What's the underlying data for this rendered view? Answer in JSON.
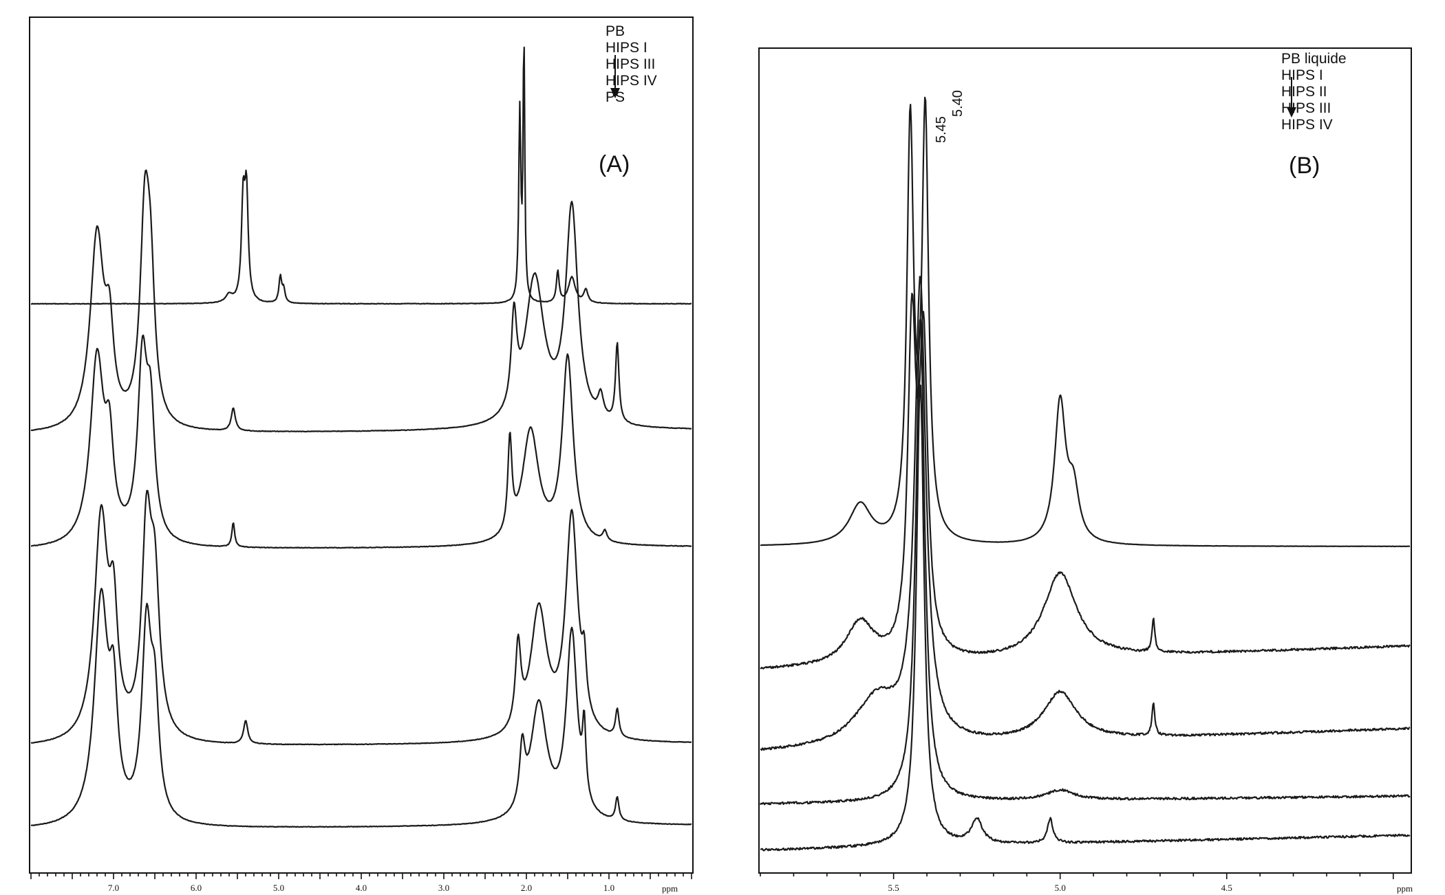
{
  "chart_data": [
    {
      "type": "line",
      "panel_label": "(A)",
      "xlabel": "ppm",
      "xlim": [
        8.0,
        0.0
      ],
      "x_reversed": true,
      "xticks": [
        7.0,
        6.0,
        5.0,
        4.0,
        3.0,
        2.0,
        1.0
      ],
      "xtick_labels": [
        "7.0",
        "6.0",
        "5.0",
        "4.0",
        "3.0",
        "2.0",
        "1.0"
      ],
      "legend": {
        "entries": [
          "PB",
          "HIPS I",
          "HIPS III",
          "HIPS IV",
          "PS"
        ],
        "arrow": "down"
      },
      "series": [
        {
          "name": "PB",
          "peaks": [
            {
              "x": 5.6,
              "h": 0.03,
              "w": 0.05
            },
            {
              "x": 5.43,
              "h": 0.37,
              "w": 0.025
            },
            {
              "x": 5.39,
              "h": 0.4,
              "w": 0.025
            },
            {
              "x": 4.98,
              "h": 0.1,
              "w": 0.02
            },
            {
              "x": 4.94,
              "h": 0.05,
              "w": 0.02
            },
            {
              "x": 2.08,
              "h": 0.72,
              "w": 0.015
            },
            {
              "x": 2.03,
              "h": 1.0,
              "w": 0.012
            },
            {
              "x": 1.62,
              "h": 0.12,
              "w": 0.02
            },
            {
              "x": 1.45,
              "h": 0.1,
              "w": 0.05
            },
            {
              "x": 1.28,
              "h": 0.05,
              "w": 0.03
            }
          ]
        },
        {
          "name": "HIPS I",
          "peaks": [
            {
              "x": 7.2,
              "h": 0.85,
              "w": 0.1
            },
            {
              "x": 7.05,
              "h": 0.35,
              "w": 0.06
            },
            {
              "x": 6.62,
              "h": 0.9,
              "w": 0.07
            },
            {
              "x": 6.55,
              "h": 0.5,
              "w": 0.06
            },
            {
              "x": 5.55,
              "h": 0.1,
              "w": 0.03
            },
            {
              "x": 2.15,
              "h": 0.4,
              "w": 0.04
            },
            {
              "x": 1.9,
              "h": 0.65,
              "w": 0.14
            },
            {
              "x": 1.45,
              "h": 0.95,
              "w": 0.09
            },
            {
              "x": 1.1,
              "h": 0.1,
              "w": 0.04
            },
            {
              "x": 0.9,
              "h": 0.35,
              "w": 0.025
            }
          ]
        },
        {
          "name": "HIPS III",
          "peaks": [
            {
              "x": 7.2,
              "h": 0.9,
              "w": 0.1
            },
            {
              "x": 7.05,
              "h": 0.4,
              "w": 0.06
            },
            {
              "x": 6.65,
              "h": 0.85,
              "w": 0.07
            },
            {
              "x": 6.55,
              "h": 0.55,
              "w": 0.06
            },
            {
              "x": 5.55,
              "h": 0.12,
              "w": 0.02
            },
            {
              "x": 2.2,
              "h": 0.45,
              "w": 0.03
            },
            {
              "x": 1.95,
              "h": 0.55,
              "w": 0.12
            },
            {
              "x": 1.5,
              "h": 0.9,
              "w": 0.08
            },
            {
              "x": 1.05,
              "h": 0.05,
              "w": 0.03
            }
          ]
        },
        {
          "name": "HIPS IV",
          "peaks": [
            {
              "x": 7.15,
              "h": 0.95,
              "w": 0.1
            },
            {
              "x": 7.0,
              "h": 0.45,
              "w": 0.06
            },
            {
              "x": 6.6,
              "h": 0.85,
              "w": 0.07
            },
            {
              "x": 6.5,
              "h": 0.6,
              "w": 0.07
            },
            {
              "x": 5.4,
              "h": 0.1,
              "w": 0.03
            },
            {
              "x": 2.1,
              "h": 0.35,
              "w": 0.04
            },
            {
              "x": 1.85,
              "h": 0.55,
              "w": 0.12
            },
            {
              "x": 1.45,
              "h": 0.95,
              "w": 0.09
            },
            {
              "x": 1.3,
              "h": 0.2,
              "w": 0.03
            },
            {
              "x": 0.9,
              "h": 0.12,
              "w": 0.025
            }
          ]
        },
        {
          "name": "PS",
          "peaks": [
            {
              "x": 7.15,
              "h": 0.95,
              "w": 0.1
            },
            {
              "x": 7.0,
              "h": 0.45,
              "w": 0.06
            },
            {
              "x": 6.6,
              "h": 0.8,
              "w": 0.07
            },
            {
              "x": 6.5,
              "h": 0.45,
              "w": 0.06
            },
            {
              "x": 2.05,
              "h": 0.25,
              "w": 0.04
            },
            {
              "x": 1.85,
              "h": 0.5,
              "w": 0.12
            },
            {
              "x": 1.45,
              "h": 0.8,
              "w": 0.08
            },
            {
              "x": 1.3,
              "h": 0.3,
              "w": 0.025
            },
            {
              "x": 0.9,
              "h": 0.1,
              "w": 0.025
            }
          ]
        }
      ]
    },
    {
      "type": "line",
      "panel_label": "(B)",
      "xlabel": "ppm",
      "xlim": [
        5.9,
        3.95
      ],
      "x_reversed": true,
      "xticks": [
        5.5,
        5.0,
        4.5
      ],
      "xtick_labels": [
        "5.5",
        "5.0",
        "4.5"
      ],
      "annotations": [
        {
          "text": "5.45",
          "x": 5.45
        },
        {
          "text": "5.40",
          "x": 5.4
        }
      ],
      "legend": {
        "entries": [
          "PB liquide",
          "HIPS I",
          "HIPS II",
          "HIPS III",
          "HIPS IV"
        ],
        "arrow": "down"
      },
      "series": [
        {
          "name": "PB liquide",
          "peaks": [
            {
              "x": 5.6,
              "h": 0.08,
              "w": 0.04
            },
            {
              "x": 5.45,
              "h": 0.82,
              "w": 0.012
            },
            {
              "x": 5.405,
              "h": 0.84,
              "w": 0.012
            },
            {
              "x": 5.0,
              "h": 0.28,
              "w": 0.02
            },
            {
              "x": 4.96,
              "h": 0.1,
              "w": 0.02
            }
          ]
        },
        {
          "name": "HIPS I",
          "peaks": [
            {
              "x": 5.6,
              "h": 0.1,
              "w": 0.05
            },
            {
              "x": 5.445,
              "h": 0.75,
              "w": 0.015
            },
            {
              "x": 5.41,
              "h": 0.7,
              "w": 0.015
            },
            {
              "x": 5.0,
              "h": 0.2,
              "w": 0.06
            },
            {
              "x": 4.72,
              "h": 0.08,
              "w": 0.005
            }
          ]
        },
        {
          "name": "HIPS II",
          "peaks": [
            {
              "x": 5.55,
              "h": 0.1,
              "w": 0.08
            },
            {
              "x": 5.42,
              "h": 0.95,
              "w": 0.02
            },
            {
              "x": 5.0,
              "h": 0.1,
              "w": 0.06
            },
            {
              "x": 4.72,
              "h": 0.07,
              "w": 0.005
            }
          ]
        },
        {
          "name": "HIPS III",
          "peaks": [
            {
              "x": 5.42,
              "h": 0.98,
              "w": 0.016
            },
            {
              "x": 5.0,
              "h": 0.02,
              "w": 0.05
            }
          ]
        },
        {
          "name": "HIPS IV",
          "peaks": [
            {
              "x": 5.42,
              "h": 0.95,
              "w": 0.014
            },
            {
              "x": 5.25,
              "h": 0.05,
              "w": 0.02
            },
            {
              "x": 5.03,
              "h": 0.05,
              "w": 0.01
            }
          ]
        }
      ]
    }
  ]
}
